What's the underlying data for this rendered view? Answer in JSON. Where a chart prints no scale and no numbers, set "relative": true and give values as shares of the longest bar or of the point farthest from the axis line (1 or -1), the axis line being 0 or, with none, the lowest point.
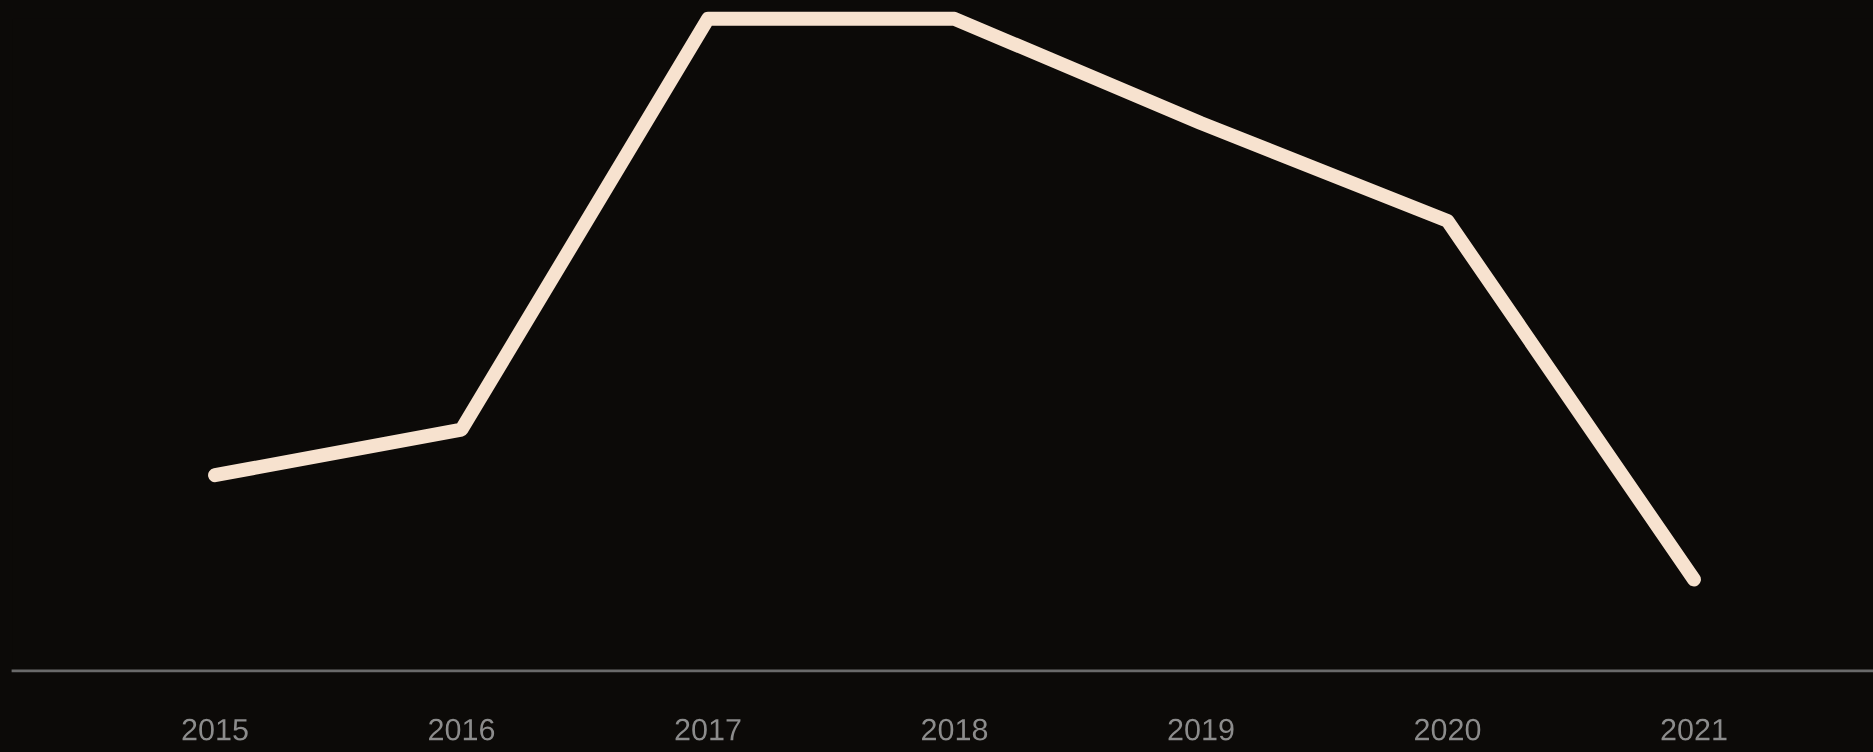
{
  "chart_data": {
    "type": "line",
    "relative": true,
    "categories": [
      "2015",
      "2016",
      "2017",
      "2018",
      "2019",
      "2020",
      "2021"
    ],
    "series": [
      {
        "color": "#f7e2cf",
        "values": [
          0.3,
          0.37,
          1,
          1,
          0.84,
          0.69,
          0.14
        ]
      }
    ],
    "grid": false,
    "legend": false,
    "line_style": "solid"
  }
}
